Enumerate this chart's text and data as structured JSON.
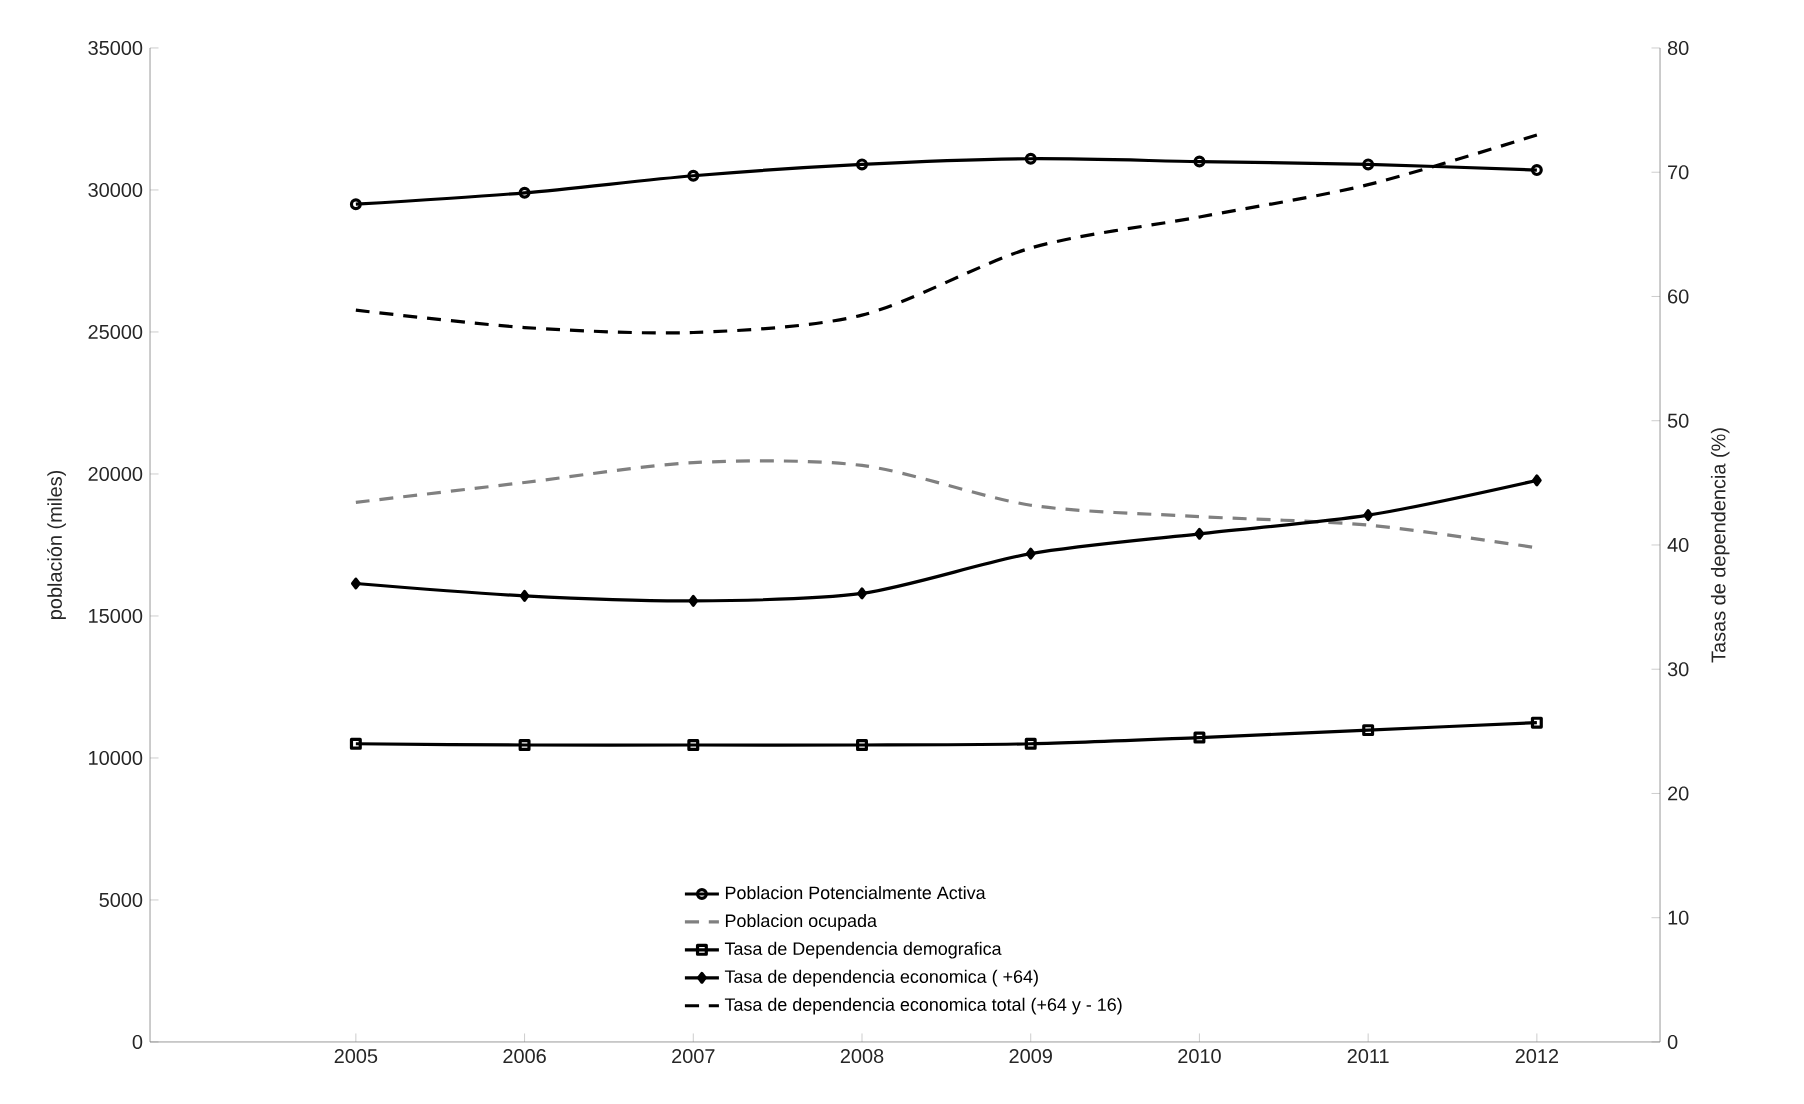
{
  "chart_data": {
    "type": "line",
    "ylabel": "población  (miles)",
    "y2label": "Tasas de dependencia (%)",
    "categories": [
      "2005",
      "2006",
      "2007",
      "2008",
      "2009",
      "2010",
      "2011",
      "2012"
    ],
    "ylim": [
      0,
      35000
    ],
    "yticks": [
      0,
      5000,
      10000,
      15000,
      20000,
      25000,
      30000,
      35000
    ],
    "y2lim": [
      0,
      80
    ],
    "y2ticks": [
      0,
      10,
      20,
      30,
      40,
      50,
      60,
      70,
      80
    ],
    "legend": "bottom",
    "series": [
      {
        "name": "Poblacion Potencialmente Activa",
        "color": "#000000",
        "marker": "circle",
        "line_style": "solid",
        "values": [
          29500,
          29900,
          30500,
          30900,
          31100,
          31000,
          30900,
          30700
        ]
      },
      {
        "name": "Poblacion ocupada",
        "color": "#808080",
        "marker": "none",
        "line_style": "dashed",
        "values": [
          19000,
          19700,
          20400,
          20300,
          18900,
          18500,
          18200,
          17400
        ]
      },
      {
        "name": "Tasa de Dependencia demografica",
        "color": "#000000",
        "marker": "square",
        "line_style": "solid",
        "axis": "y2",
        "values": [
          24.0,
          23.9,
          23.9,
          23.9,
          24.0,
          24.5,
          25.1,
          25.7
        ]
      },
      {
        "name": "Tasa de dependencia economica ( +64)",
        "color": "#000000",
        "marker": "diamond",
        "line_style": "solid",
        "axis": "y2",
        "values": [
          36.9,
          35.9,
          35.5,
          36.1,
          39.3,
          40.9,
          42.4,
          45.2
        ]
      },
      {
        "name": "Tasa de dependencia economica total (+64 y - 16)",
        "color": "#000000",
        "marker": "none",
        "line_style": "dashed",
        "axis": "y2",
        "values": [
          58.9,
          57.5,
          57.1,
          58.5,
          63.9,
          66.4,
          69.0,
          73.0
        ]
      }
    ]
  }
}
